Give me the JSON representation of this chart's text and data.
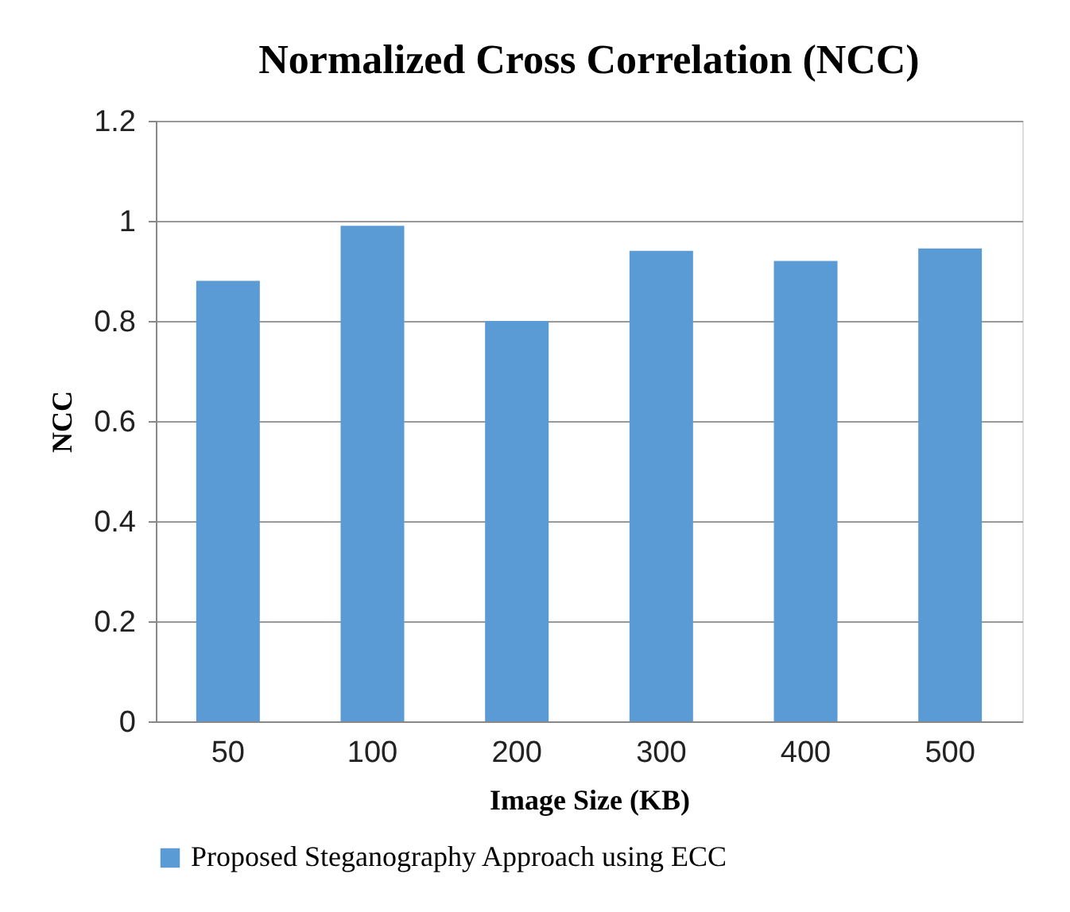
{
  "chart_data": {
    "type": "bar",
    "title": "Normalized Cross Correlation  (NCC)",
    "xlabel": "Image Size (KB)",
    "ylabel": "NCC",
    "categories": [
      "50",
      "100",
      "200",
      "300",
      "400",
      "500"
    ],
    "series": [
      {
        "name": "Proposed Steganography Approach using ECC",
        "color": "#5b9bd5",
        "values": [
          0.88,
          0.99,
          0.8,
          0.94,
          0.92,
          0.945
        ]
      }
    ],
    "ylim": [
      0,
      1.2
    ],
    "yticks": [
      0,
      0.2,
      0.4,
      0.6,
      0.8,
      1,
      1.2
    ],
    "grid": "y",
    "legend": "bottom"
  }
}
